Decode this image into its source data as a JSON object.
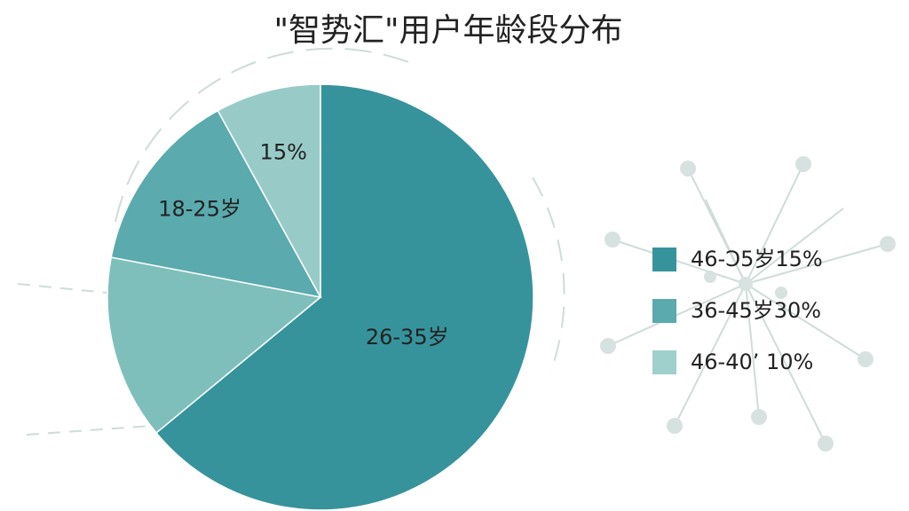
{
  "chart_data": {
    "type": "pie",
    "title": "\"智势汇\"用户年龄段分布",
    "labels": [
      "26-35岁",
      null,
      "18-25岁",
      "15%"
    ],
    "values": [
      64,
      14,
      14,
      8
    ],
    "colors": [
      "#36939c",
      "#7fbfbb",
      "#5aaaae",
      "#98cbc7"
    ],
    "legend": [
      {
        "label": "46-Ɔ5岁15%",
        "color": "#36939c"
      },
      {
        "label": "36-45岁30%",
        "color": "#5aaaae"
      },
      {
        "label": "46-40’ 10%",
        "color": "#9fd0cc"
      }
    ]
  }
}
